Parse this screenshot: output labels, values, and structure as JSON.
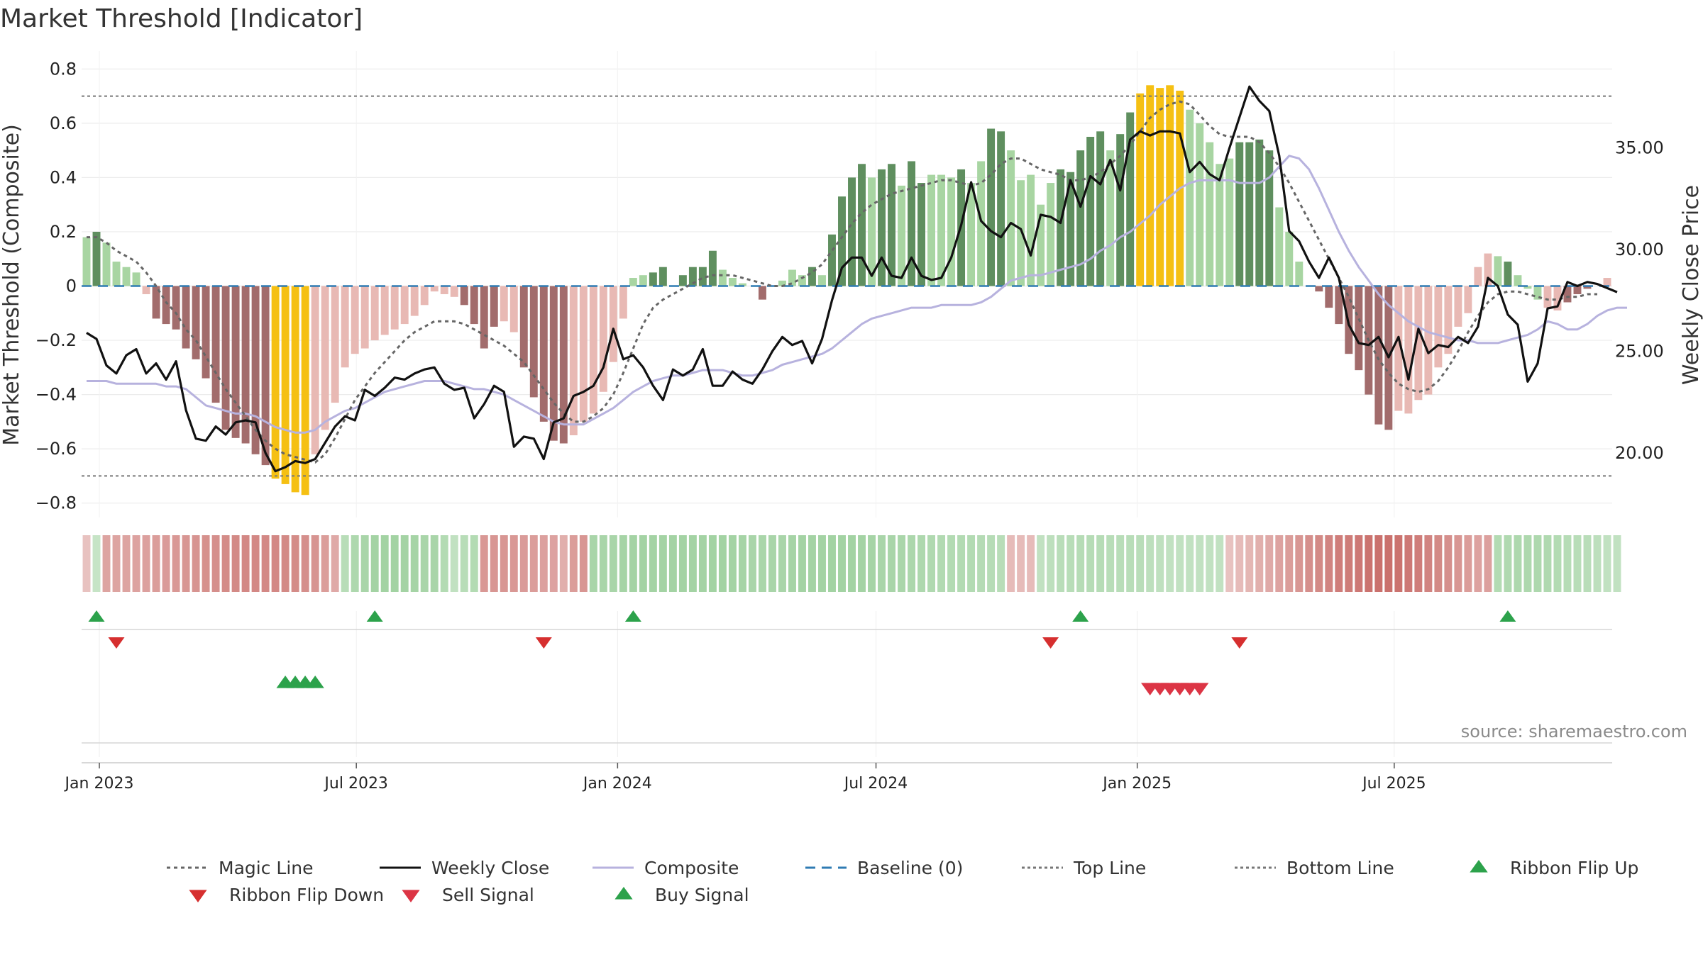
{
  "title": "Market Threshold [Indicator]",
  "source": "source: sharemaestro.com",
  "colors": {
    "dark_green": "#5f8f5f",
    "light_green": "#a8d5a2",
    "dark_red": "#a26c6c",
    "light_red": "#e8b9b4",
    "extreme": "#f5c013",
    "magic_line": "#666666",
    "weekly_close": "#111111",
    "composite": "#b7b2de",
    "baseline": "#2f7bb3",
    "threshold": "#777777",
    "buy": "#2ca24b",
    "sell": "#dc3545",
    "flip_down": "#d62f2f"
  },
  "chart_data": {
    "type": "bar",
    "start_date": "2022-12-23",
    "week_step_days": 7,
    "left_axis": {
      "label": "Market Threshold (Composite)",
      "ylim": [
        -0.84,
        0.84
      ],
      "ticks": [
        -0.8,
        -0.6,
        -0.4,
        -0.2,
        0,
        0.2,
        0.4,
        0.6,
        0.8
      ],
      "tick_labels": [
        "−0.8",
        "−0.6",
        "−0.4",
        "−0.2",
        "0",
        "0.2",
        "0.4",
        "0.6",
        "0.8"
      ]
    },
    "right_axis": {
      "label": "Weekly Close Price",
      "ylim": [
        17.0,
        39.4
      ],
      "ticks": [
        20,
        25,
        30,
        35
      ],
      "tick_labels": [
        "20.00",
        "25.00",
        "30.00",
        "35.00"
      ]
    },
    "x_tick_labels": [
      {
        "label": "Jan 2023",
        "date": "2023-01-01"
      },
      {
        "label": "Jul 2023",
        "date": "2023-07-01"
      },
      {
        "label": "Jan 2024",
        "date": "2024-01-01"
      },
      {
        "label": "Jul 2024",
        "date": "2024-07-01"
      },
      {
        "label": "Jan 2025",
        "date": "2025-01-01"
      },
      {
        "label": "Jul 2025",
        "date": "2025-07-01"
      }
    ],
    "top_line": 0.7,
    "bottom_line": -0.7,
    "baseline": 0,
    "composite_bars": [
      0.18,
      0.2,
      0.16,
      0.09,
      0.07,
      0.05,
      -0.03,
      -0.12,
      -0.14,
      -0.16,
      -0.23,
      -0.27,
      -0.34,
      -0.43,
      -0.53,
      -0.56,
      -0.58,
      -0.62,
      -0.66,
      -0.71,
      -0.73,
      -0.76,
      -0.77,
      -0.62,
      -0.53,
      -0.43,
      -0.3,
      -0.25,
      -0.23,
      -0.2,
      -0.18,
      -0.16,
      -0.14,
      -0.11,
      -0.07,
      -0.02,
      -0.03,
      -0.04,
      -0.07,
      -0.14,
      -0.23,
      -0.15,
      -0.13,
      -0.17,
      -0.3,
      -0.41,
      -0.5,
      -0.57,
      -0.58,
      -0.55,
      -0.5,
      -0.47,
      -0.39,
      -0.28,
      -0.12,
      0.03,
      0.04,
      0.05,
      0.07,
      0.0,
      0.04,
      0.07,
      0.07,
      0.13,
      0.06,
      0.03,
      0.01,
      0.0,
      -0.05,
      0.0,
      0.02,
      0.06,
      0.04,
      0.07,
      0.04,
      0.19,
      0.33,
      0.4,
      0.45,
      0.4,
      0.43,
      0.45,
      0.37,
      0.46,
      0.38,
      0.41,
      0.41,
      0.4,
      0.43,
      0.38,
      0.46,
      0.58,
      0.57,
      0.5,
      0.39,
      0.41,
      0.3,
      0.38,
      0.43,
      0.42,
      0.5,
      0.55,
      0.57,
      0.5,
      0.56,
      0.64,
      0.71,
      0.74,
      0.73,
      0.74,
      0.72,
      0.65,
      0.6,
      0.53,
      0.45,
      0.47,
      0.53,
      0.53,
      0.54,
      0.5,
      0.29,
      0.2,
      0.09,
      0.0,
      -0.02,
      -0.08,
      -0.14,
      -0.25,
      -0.31,
      -0.4,
      -0.51,
      -0.53,
      -0.46,
      -0.47,
      -0.42,
      -0.4,
      -0.3,
      -0.25,
      -0.15,
      -0.1,
      0.07,
      0.12,
      0.11,
      0.09,
      0.04,
      -0.01,
      -0.05,
      -0.08,
      -0.09,
      -0.06,
      -0.03,
      -0.01,
      0.0,
      0.03
    ],
    "bar_styles": [
      "lg",
      "dg",
      "lg",
      "lg",
      "lg",
      "lg",
      "lr",
      "dr",
      "dr",
      "dr",
      "dr",
      "dr",
      "dr",
      "dr",
      "dr",
      "dr",
      "dr",
      "dr",
      "dr",
      "ex",
      "ex",
      "ex",
      "ex",
      "lr",
      "lr",
      "lr",
      "lr",
      "lr",
      "lr",
      "lr",
      "lr",
      "lr",
      "lr",
      "lr",
      "lr",
      "lr",
      "lr",
      "lr",
      "dr",
      "dr",
      "dr",
      "dr",
      "lr",
      "lr",
      "dr",
      "dr",
      "dr",
      "dr",
      "dr",
      "lr",
      "lr",
      "lr",
      "lr",
      "lr",
      "lr",
      "lg",
      "lg",
      "dg",
      "dg",
      "lg",
      "dg",
      "dg",
      "dg",
      "dg",
      "lg",
      "lg",
      "lg",
      "lg",
      "dr",
      "lg",
      "lg",
      "lg",
      "lg",
      "dg",
      "lg",
      "dg",
      "dg",
      "dg",
      "dg",
      "lg",
      "dg",
      "dg",
      "lg",
      "dg",
      "dg",
      "lg",
      "lg",
      "lg",
      "dg",
      "lg",
      "lg",
      "dg",
      "dg",
      "lg",
      "lg",
      "lg",
      "lg",
      "lg",
      "dg",
      "dg",
      "dg",
      "dg",
      "dg",
      "lg",
      "dg",
      "dg",
      "ex",
      "ex",
      "ex",
      "ex",
      "ex",
      "lg",
      "lg",
      "lg",
      "lg",
      "lg",
      "dg",
      "dg",
      "dg",
      "dg",
      "lg",
      "lg",
      "lg",
      "lr",
      "dr",
      "dr",
      "dr",
      "dr",
      "dr",
      "dr",
      "dr",
      "dr",
      "lr",
      "lr",
      "lr",
      "lr",
      "lr",
      "lr",
      "lr",
      "lr",
      "lr",
      "lr",
      "lg",
      "dg",
      "lg",
      "lg",
      "lg",
      "lr",
      "lr",
      "dr",
      "dr",
      "dr",
      "lr",
      "lr",
      "lr",
      "lg"
    ],
    "series": [
      {
        "name": "Magic Line",
        "values": [
          0.18,
          0.18,
          0.16,
          0.13,
          0.11,
          0.09,
          0.05,
          0.0,
          -0.06,
          -0.1,
          -0.16,
          -0.2,
          -0.26,
          -0.32,
          -0.38,
          -0.43,
          -0.48,
          -0.53,
          -0.57,
          -0.6,
          -0.62,
          -0.63,
          -0.64,
          -0.65,
          -0.62,
          -0.56,
          -0.49,
          -0.42,
          -0.37,
          -0.32,
          -0.28,
          -0.24,
          -0.2,
          -0.17,
          -0.15,
          -0.13,
          -0.13,
          -0.13,
          -0.14,
          -0.16,
          -0.18,
          -0.2,
          -0.22,
          -0.25,
          -0.28,
          -0.33,
          -0.38,
          -0.43,
          -0.47,
          -0.5,
          -0.5,
          -0.48,
          -0.45,
          -0.4,
          -0.32,
          -0.23,
          -0.14,
          -0.08,
          -0.05,
          -0.03,
          -0.01,
          0.01,
          0.03,
          0.04,
          0.04,
          0.04,
          0.03,
          0.02,
          0.01,
          0.0,
          0.0,
          0.01,
          0.03,
          0.05,
          0.08,
          0.13,
          0.18,
          0.23,
          0.27,
          0.3,
          0.32,
          0.34,
          0.35,
          0.36,
          0.37,
          0.38,
          0.39,
          0.39,
          0.38,
          0.37,
          0.38,
          0.41,
          0.45,
          0.47,
          0.47,
          0.45,
          0.43,
          0.42,
          0.41,
          0.39,
          0.39,
          0.4,
          0.42,
          0.45,
          0.48,
          0.52,
          0.57,
          0.62,
          0.65,
          0.67,
          0.68,
          0.67,
          0.63,
          0.59,
          0.56,
          0.55,
          0.55,
          0.55,
          0.53,
          0.49,
          0.44,
          0.38,
          0.31,
          0.24,
          0.17,
          0.1,
          0.03,
          -0.04,
          -0.12,
          -0.2,
          -0.27,
          -0.32,
          -0.36,
          -0.38,
          -0.39,
          -0.38,
          -0.35,
          -0.3,
          -0.24,
          -0.17,
          -0.11,
          -0.06,
          -0.03,
          -0.02,
          -0.02,
          -0.03,
          -0.04,
          -0.05,
          -0.05,
          -0.04,
          -0.04,
          -0.03,
          -0.03
        ]
      },
      {
        "name": "Composite",
        "values": [
          -0.35,
          -0.35,
          -0.35,
          -0.36,
          -0.36,
          -0.36,
          -0.36,
          -0.36,
          -0.37,
          -0.37,
          -0.38,
          -0.41,
          -0.44,
          -0.45,
          -0.46,
          -0.47,
          -0.47,
          -0.48,
          -0.5,
          -0.52,
          -0.53,
          -0.54,
          -0.54,
          -0.53,
          -0.5,
          -0.48,
          -0.46,
          -0.45,
          -0.43,
          -0.41,
          -0.39,
          -0.38,
          -0.37,
          -0.36,
          -0.35,
          -0.35,
          -0.35,
          -0.36,
          -0.37,
          -0.38,
          -0.38,
          -0.39,
          -0.4,
          -0.42,
          -0.44,
          -0.46,
          -0.48,
          -0.5,
          -0.51,
          -0.51,
          -0.51,
          -0.49,
          -0.47,
          -0.45,
          -0.42,
          -0.39,
          -0.37,
          -0.35,
          -0.34,
          -0.33,
          -0.33,
          -0.32,
          -0.31,
          -0.31,
          -0.31,
          -0.32,
          -0.33,
          -0.33,
          -0.32,
          -0.31,
          -0.29,
          -0.28,
          -0.27,
          -0.26,
          -0.25,
          -0.23,
          -0.2,
          -0.17,
          -0.14,
          -0.12,
          -0.11,
          -0.1,
          -0.09,
          -0.08,
          -0.08,
          -0.08,
          -0.07,
          -0.07,
          -0.07,
          -0.07,
          -0.06,
          -0.04,
          -0.01,
          0.02,
          0.03,
          0.04,
          0.04,
          0.05,
          0.06,
          0.07,
          0.08,
          0.1,
          0.13,
          0.15,
          0.18,
          0.2,
          0.23,
          0.26,
          0.3,
          0.33,
          0.36,
          0.38,
          0.39,
          0.39,
          0.39,
          0.39,
          0.38,
          0.38,
          0.38,
          0.4,
          0.44,
          0.48,
          0.47,
          0.43,
          0.36,
          0.28,
          0.2,
          0.13,
          0.07,
          0.02,
          -0.03,
          -0.07,
          -0.1,
          -0.13,
          -0.15,
          -0.17,
          -0.18,
          -0.19,
          -0.2,
          -0.2,
          -0.21,
          -0.21,
          -0.21,
          -0.2,
          -0.19,
          -0.18,
          -0.16,
          -0.13,
          -0.14,
          -0.16,
          -0.16,
          -0.14,
          -0.11,
          -0.09,
          -0.08,
          -0.08
        ]
      },
      {
        "name": "Weekly Close",
        "axis": "right",
        "values": [
          25.9,
          25.6,
          24.3,
          23.9,
          24.8,
          25.1,
          23.9,
          24.4,
          23.6,
          24.5,
          22.1,
          20.7,
          20.6,
          21.3,
          20.9,
          21.5,
          21.6,
          21.5,
          20.0,
          19.1,
          19.3,
          19.6,
          19.5,
          19.7,
          20.5,
          21.3,
          21.8,
          21.6,
          23.1,
          22.8,
          23.2,
          23.7,
          23.6,
          23.9,
          24.1,
          24.2,
          23.4,
          23.1,
          23.2,
          21.7,
          22.4,
          23.3,
          23.0,
          20.3,
          20.8,
          20.7,
          19.7,
          21.5,
          21.7,
          22.8,
          23.0,
          23.3,
          24.2,
          26.1,
          24.6,
          24.8,
          24.2,
          23.3,
          22.6,
          24.1,
          23.8,
          24.1,
          25.1,
          23.3,
          23.3,
          24.0,
          23.6,
          23.4,
          24.1,
          25.0,
          25.7,
          25.3,
          25.5,
          24.4,
          25.6,
          27.5,
          29.1,
          29.6,
          29.6,
          28.7,
          29.6,
          28.7,
          28.6,
          29.6,
          28.7,
          28.5,
          28.6,
          29.6,
          31.2,
          33.3,
          31.4,
          30.9,
          30.6,
          31.3,
          31.0,
          29.7,
          31.7,
          31.6,
          31.3,
          33.4,
          32.1,
          33.6,
          33.2,
          34.4,
          32.9,
          35.4,
          35.8,
          35.6,
          35.8,
          35.8,
          35.7,
          33.8,
          34.3,
          33.7,
          33.4,
          35.0,
          36.5,
          38.0,
          37.3,
          36.8,
          34.6,
          30.9,
          30.4,
          29.4,
          28.6,
          29.6,
          28.6,
          26.3,
          25.4,
          25.3,
          25.7,
          24.7,
          25.7,
          23.6,
          26.1,
          24.9,
          25.3,
          25.2,
          25.7,
          25.4,
          26.2,
          28.6,
          28.2,
          26.8,
          26.3,
          23.5,
          24.4,
          27.1,
          27.2,
          28.4,
          28.2,
          28.4,
          28.3,
          28.1,
          27.9
        ]
      }
    ],
    "ribbon_values": [
      0.15,
      0.25,
      0.38,
      0.38,
      0.38,
      0.4,
      0.42,
      0.44,
      0.46,
      0.48,
      0.5,
      0.52,
      0.54,
      0.56,
      0.58,
      0.6,
      0.62,
      0.62,
      0.62,
      0.62,
      0.6,
      0.58,
      0.55,
      0.52,
      0.45,
      0.35,
      0.4,
      0.5,
      0.55,
      0.6,
      0.62,
      0.62,
      0.6,
      0.58,
      0.56,
      0.55,
      0.45,
      0.3,
      0.4,
      0.45,
      0.48,
      0.5,
      0.5,
      0.48,
      0.46,
      0.44,
      0.42,
      0.4,
      0.3,
      0.45,
      0.5,
      0.55,
      0.55,
      0.55,
      0.58,
      0.6,
      0.6,
      0.6,
      0.6,
      0.6,
      0.6,
      0.6,
      0.6,
      0.62,
      0.62,
      0.6,
      0.58,
      0.56,
      0.54,
      0.55,
      0.56,
      0.58,
      0.6,
      0.6,
      0.6,
      0.62,
      0.62,
      0.62,
      0.6,
      0.58,
      0.56,
      0.55,
      0.54,
      0.52,
      0.5,
      0.48,
      0.46,
      0.45,
      0.45,
      0.44,
      0.43,
      0.42,
      0.4,
      0.2,
      0.2,
      0.2,
      0.3,
      0.35,
      0.38,
      0.4,
      0.42,
      0.42,
      0.42,
      0.4,
      0.4,
      0.4,
      0.38,
      0.35,
      0.32,
      0.3,
      0.3,
      0.3,
      0.3,
      0.3,
      0.3,
      0.15,
      0.2,
      0.25,
      0.3,
      0.35,
      0.4,
      0.45,
      0.5,
      0.55,
      0.6,
      0.65,
      0.7,
      0.72,
      0.75,
      0.78,
      0.8,
      0.8,
      0.78,
      0.75,
      0.7,
      0.65,
      0.6,
      0.55,
      0.5,
      0.45,
      0.4,
      0.42,
      0.45,
      0.48,
      0.5,
      0.5,
      0.5,
      0.48,
      0.45,
      0.42,
      0.4,
      0.38,
      0.35,
      0.3,
      0.3
    ],
    "ribbon_signs": [
      "r",
      "g",
      "r",
      "r",
      "r",
      "r",
      "r",
      "r",
      "r",
      "r",
      "r",
      "r",
      "r",
      "r",
      "r",
      "r",
      "r",
      "r",
      "r",
      "r",
      "r",
      "r",
      "r",
      "r",
      "r",
      "r",
      "g",
      "g",
      "g",
      "g",
      "g",
      "g",
      "g",
      "g",
      "g",
      "g",
      "g",
      "g",
      "g",
      "g",
      "r",
      "r",
      "r",
      "r",
      "r",
      "r",
      "r",
      "r",
      "r",
      "r",
      "r",
      "g",
      "g",
      "g",
      "g",
      "g",
      "g",
      "g",
      "g",
      "g",
      "g",
      "g",
      "g",
      "g",
      "g",
      "g",
      "g",
      "g",
      "g",
      "g",
      "g",
      "g",
      "g",
      "g",
      "g",
      "g",
      "g",
      "g",
      "g",
      "g",
      "g",
      "g",
      "g",
      "g",
      "g",
      "g",
      "g",
      "g",
      "g",
      "g",
      "g",
      "g",
      "g",
      "r",
      "r",
      "r",
      "g",
      "g",
      "g",
      "g",
      "g",
      "g",
      "g",
      "g",
      "g",
      "g",
      "g",
      "g",
      "g",
      "g",
      "g",
      "g",
      "g",
      "g",
      "g",
      "r",
      "r",
      "r",
      "r",
      "r",
      "r",
      "r",
      "r",
      "r",
      "r",
      "r",
      "r",
      "r",
      "r",
      "r",
      "r",
      "r",
      "r",
      "r",
      "r",
      "r",
      "r",
      "r",
      "r",
      "r",
      "r",
      "r",
      "g",
      "g",
      "g",
      "g",
      "g",
      "g",
      "g",
      "g",
      "g",
      "g",
      "g",
      "g",
      "g",
      "g",
      "g"
    ],
    "ribbon_flip_up_weeks": [
      1,
      29,
      55,
      100,
      143
    ],
    "ribbon_flip_down_weeks": [
      3,
      46,
      97,
      116
    ],
    "buy_signal_weeks": [
      20,
      21,
      22,
      23
    ],
    "sell_signal_weeks": [
      107,
      108,
      109,
      110,
      111,
      112
    ],
    "legend": [
      "Magic Line",
      "Weekly Close",
      "Composite",
      "Baseline (0)",
      "Top Line",
      "Bottom Line",
      "Ribbon Flip Up",
      "Ribbon Flip Down",
      "Sell Signal",
      "Buy Signal"
    ]
  }
}
